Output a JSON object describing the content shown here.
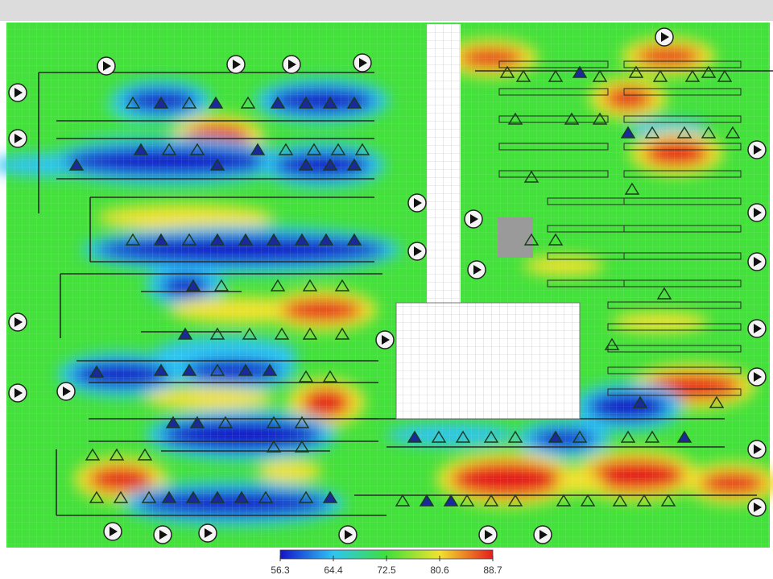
{
  "legend": {
    "range": [
      56.3,
      88.7
    ],
    "ticks": [
      56.3,
      64.4,
      72.5,
      80.6,
      88.7
    ],
    "colors": [
      "#1414c8",
      "#2fc4f2",
      "#3fe03c",
      "#f2e22e",
      "#e41e1e"
    ]
  }
}
